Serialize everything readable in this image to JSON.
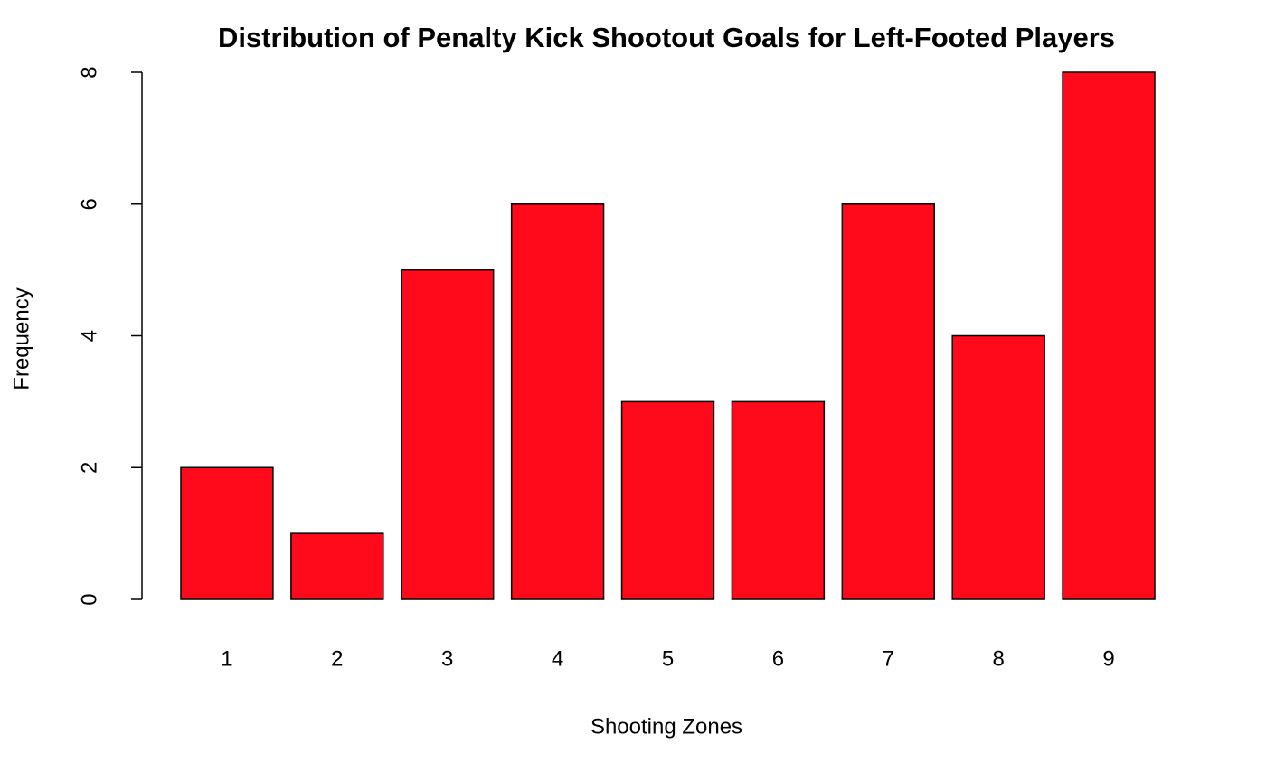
{
  "chart_data": {
    "type": "bar",
    "title": "Distribution of Penalty Kick Shootout Goals for Left-Footed Players",
    "x_label": "Shooting Zones",
    "y_label": "Frequency",
    "categories": [
      "1",
      "2",
      "3",
      "4",
      "5",
      "6",
      "7",
      "8",
      "9"
    ],
    "values": [
      2,
      1,
      5,
      6,
      3,
      3,
      6,
      4,
      8
    ],
    "color": "#ff0a1a",
    "ylim": [
      0,
      8
    ],
    "yticks": [
      0,
      2,
      4,
      6,
      8
    ],
    "grid": false
  }
}
